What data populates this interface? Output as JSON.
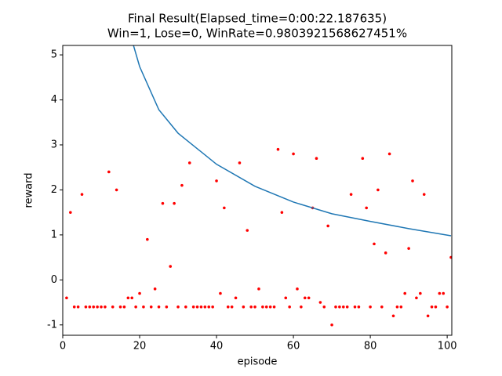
{
  "chart_data": {
    "type": "scatter",
    "title": "Final Result(Elapsed_time=0:00:22.187635)",
    "subtitle": "Win=1, Lose=0, WinRate=0.9803921568627451%",
    "x_label": "episode",
    "y_label": "reward",
    "xlim": [
      0,
      101.2
    ],
    "ylim": [
      -1.23,
      5.21
    ],
    "xticks": [
      0,
      20,
      40,
      60,
      80,
      100
    ],
    "yticks": [
      -1,
      0,
      1,
      2,
      3,
      4,
      5
    ],
    "grid": false,
    "series": [
      {
        "type": "scatter",
        "color": "#ff0000",
        "x": [
          1,
          2,
          3,
          4,
          5,
          6,
          7,
          8,
          9,
          10,
          11,
          12,
          13,
          14,
          15,
          16,
          17,
          18,
          19,
          20,
          21,
          22,
          23,
          24,
          25,
          26,
          27,
          28,
          29,
          30,
          31,
          32,
          33,
          34,
          35,
          36,
          37,
          38,
          39,
          40,
          41,
          42,
          43,
          44,
          45,
          46,
          47,
          48,
          49,
          50,
          51,
          52,
          53,
          54,
          55,
          56,
          57,
          58,
          59,
          60,
          61,
          62,
          63,
          64,
          65,
          66,
          67,
          68,
          69,
          70,
          71,
          72,
          73,
          74,
          75,
          76,
          77,
          78,
          79,
          80,
          81,
          82,
          83,
          84,
          85,
          86,
          87,
          88,
          89,
          90,
          91,
          92,
          93,
          94,
          95,
          96,
          97,
          98,
          99,
          100,
          101
        ],
        "values": [
          -0.4,
          1.5,
          -0.6,
          -0.6,
          1.9,
          -0.6,
          -0.6,
          -0.6,
          -0.6,
          -0.6,
          -0.6,
          2.4,
          -0.6,
          2.0,
          -0.6,
          -0.6,
          -0.4,
          -0.4,
          -0.6,
          -0.3,
          -0.6,
          0.9,
          -0.6,
          -0.2,
          -0.6,
          1.7,
          -0.6,
          0.3,
          1.7,
          -0.6,
          2.1,
          -0.6,
          2.6,
          -0.6,
          -0.6,
          -0.6,
          -0.6,
          -0.6,
          -0.6,
          2.2,
          -0.3,
          1.6,
          -0.6,
          -0.6,
          -0.4,
          2.6,
          -0.6,
          1.1,
          -0.6,
          -0.6,
          -0.2,
          -0.6,
          -0.6,
          -0.6,
          -0.6,
          2.9,
          1.5,
          -0.4,
          -0.6,
          2.8,
          -0.2,
          -0.6,
          -0.4,
          -0.4,
          1.6,
          2.7,
          -0.5,
          -0.6,
          1.2,
          -1.0,
          -0.6,
          -0.6,
          -0.6,
          -0.6,
          1.9,
          -0.6,
          -0.6,
          2.7,
          1.6,
          -0.6,
          0.8,
          2.0,
          -0.6,
          0.6,
          2.8,
          -0.8,
          -0.6,
          -0.6,
          -0.3,
          0.7,
          2.2,
          -0.4,
          -0.3,
          1.9,
          -0.8,
          -0.6,
          -0.6,
          -0.3,
          -0.3,
          -0.6,
          0.5
        ]
      },
      {
        "type": "line",
        "color": "#1f77b4",
        "x": [
          18.4,
          20,
          25,
          30,
          40,
          50,
          60,
          70,
          80,
          90,
          101
        ],
        "values": [
          5.21,
          4.74,
          3.78,
          3.26,
          2.57,
          2.08,
          1.73,
          1.47,
          1.3,
          1.14,
          0.98
        ]
      }
    ]
  }
}
